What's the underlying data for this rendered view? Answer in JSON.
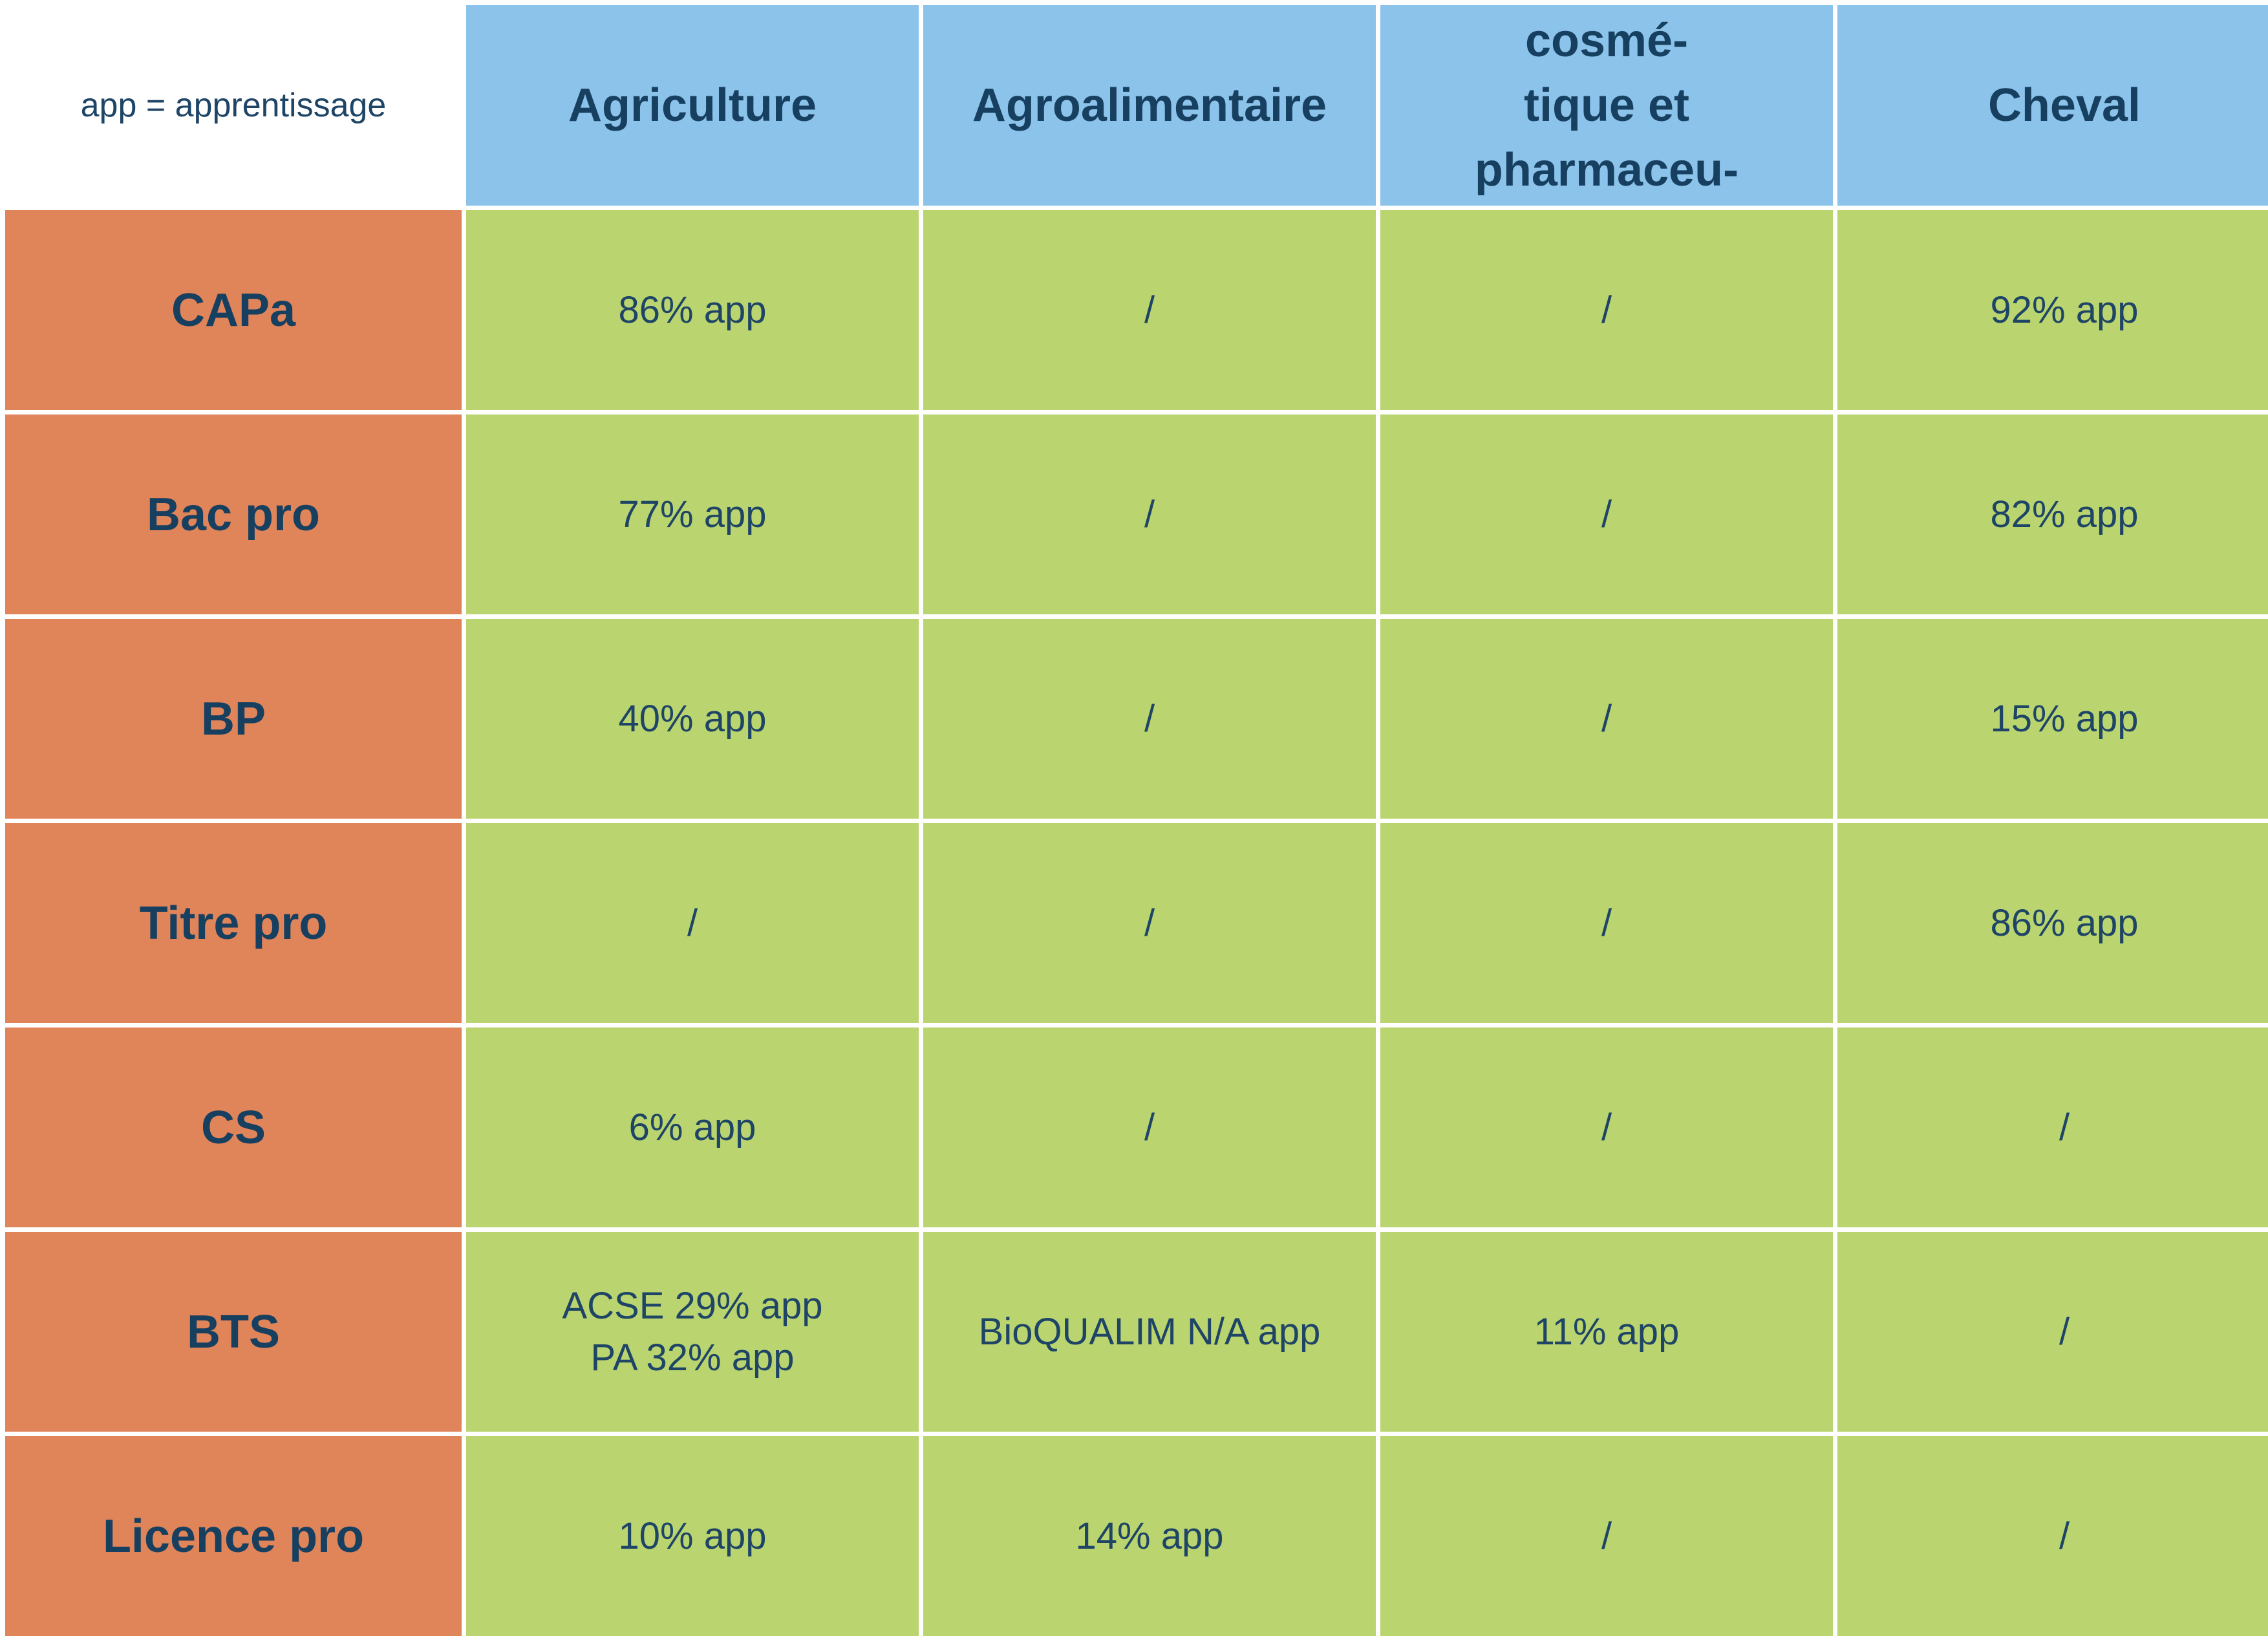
{
  "chart_data": {
    "type": "table",
    "note": "app = apprentissage",
    "columns": [
      "Agriculture",
      "Agroalimentaire",
      "Laboratoire, cosmé-\ntique et pharmaceu-\ntique",
      "Cheval"
    ],
    "rows": [
      {
        "label": "CAPa",
        "cells": [
          "86% app",
          "/",
          "/",
          "92% app"
        ]
      },
      {
        "label": "Bac pro",
        "cells": [
          "77% app",
          "/",
          "/",
          "82% app"
        ]
      },
      {
        "label": "BP",
        "cells": [
          "40% app",
          "/",
          "/",
          "15% app"
        ]
      },
      {
        "label": "Titre pro",
        "cells": [
          "/",
          "/",
          "/",
          "86% app"
        ]
      },
      {
        "label": "CS",
        "cells": [
          "6% app",
          "/",
          "/",
          "/"
        ]
      },
      {
        "label": "BTS",
        "cells": [
          "ACSE 29% app\nPA 32% app",
          "BioQUALIM N/A app",
          "11% app",
          "/"
        ]
      },
      {
        "label": "Licence pro",
        "cells": [
          "10% app",
          "14% app",
          "/",
          "/"
        ]
      }
    ]
  },
  "colors": {
    "column_header": "#8cc3ea",
    "row_header": "#e0845a",
    "data_cell": "#bad46f",
    "text": "#173f5f"
  }
}
